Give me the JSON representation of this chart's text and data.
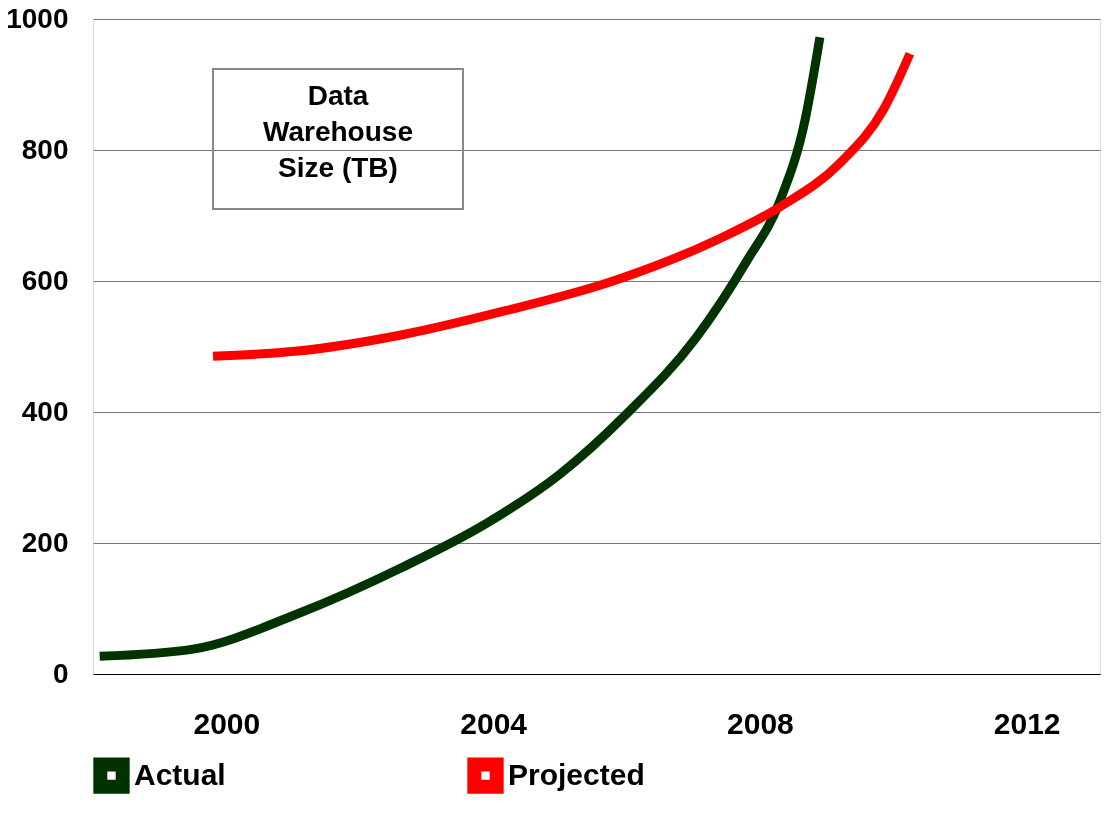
{
  "chart_data": {
    "type": "line",
    "annotations": [
      "Data\nWarehouse\nSize (TB)"
    ],
    "xlim": [
      1998,
      2013.1
    ],
    "xticks": [
      2000,
      2004,
      2008,
      2012
    ],
    "ylim": [
      0,
      1000
    ],
    "yticks": [
      0,
      200,
      400,
      600,
      800,
      1000
    ],
    "grid": "y",
    "legend": "bottom",
    "line_style": "solid",
    "marker": "none",
    "series": [
      {
        "name": "Actual",
        "color": "#003300",
        "x": [
          1998.1,
          1999.5,
          2001.07,
          2002.64,
          2003.9,
          2005.0,
          2006.0,
          2007.04,
          2007.8,
          2008.3,
          2008.68,
          2008.9
        ],
        "values": [
          27,
          38,
          92,
          163,
          230,
          305,
          397,
          513,
          630,
          722,
          847,
          972
        ]
      },
      {
        "name": "Projected",
        "color": "#ff0000",
        "x": [
          1999.8,
          2001.07,
          2002.64,
          2004.2,
          2005.8,
          2007.36,
          2008.3,
          2009.2,
          2009.86,
          2010.25
        ],
        "values": [
          485,
          493,
          518,
          555,
          600,
          663,
          713,
          780,
          863,
          947
        ]
      }
    ]
  }
}
